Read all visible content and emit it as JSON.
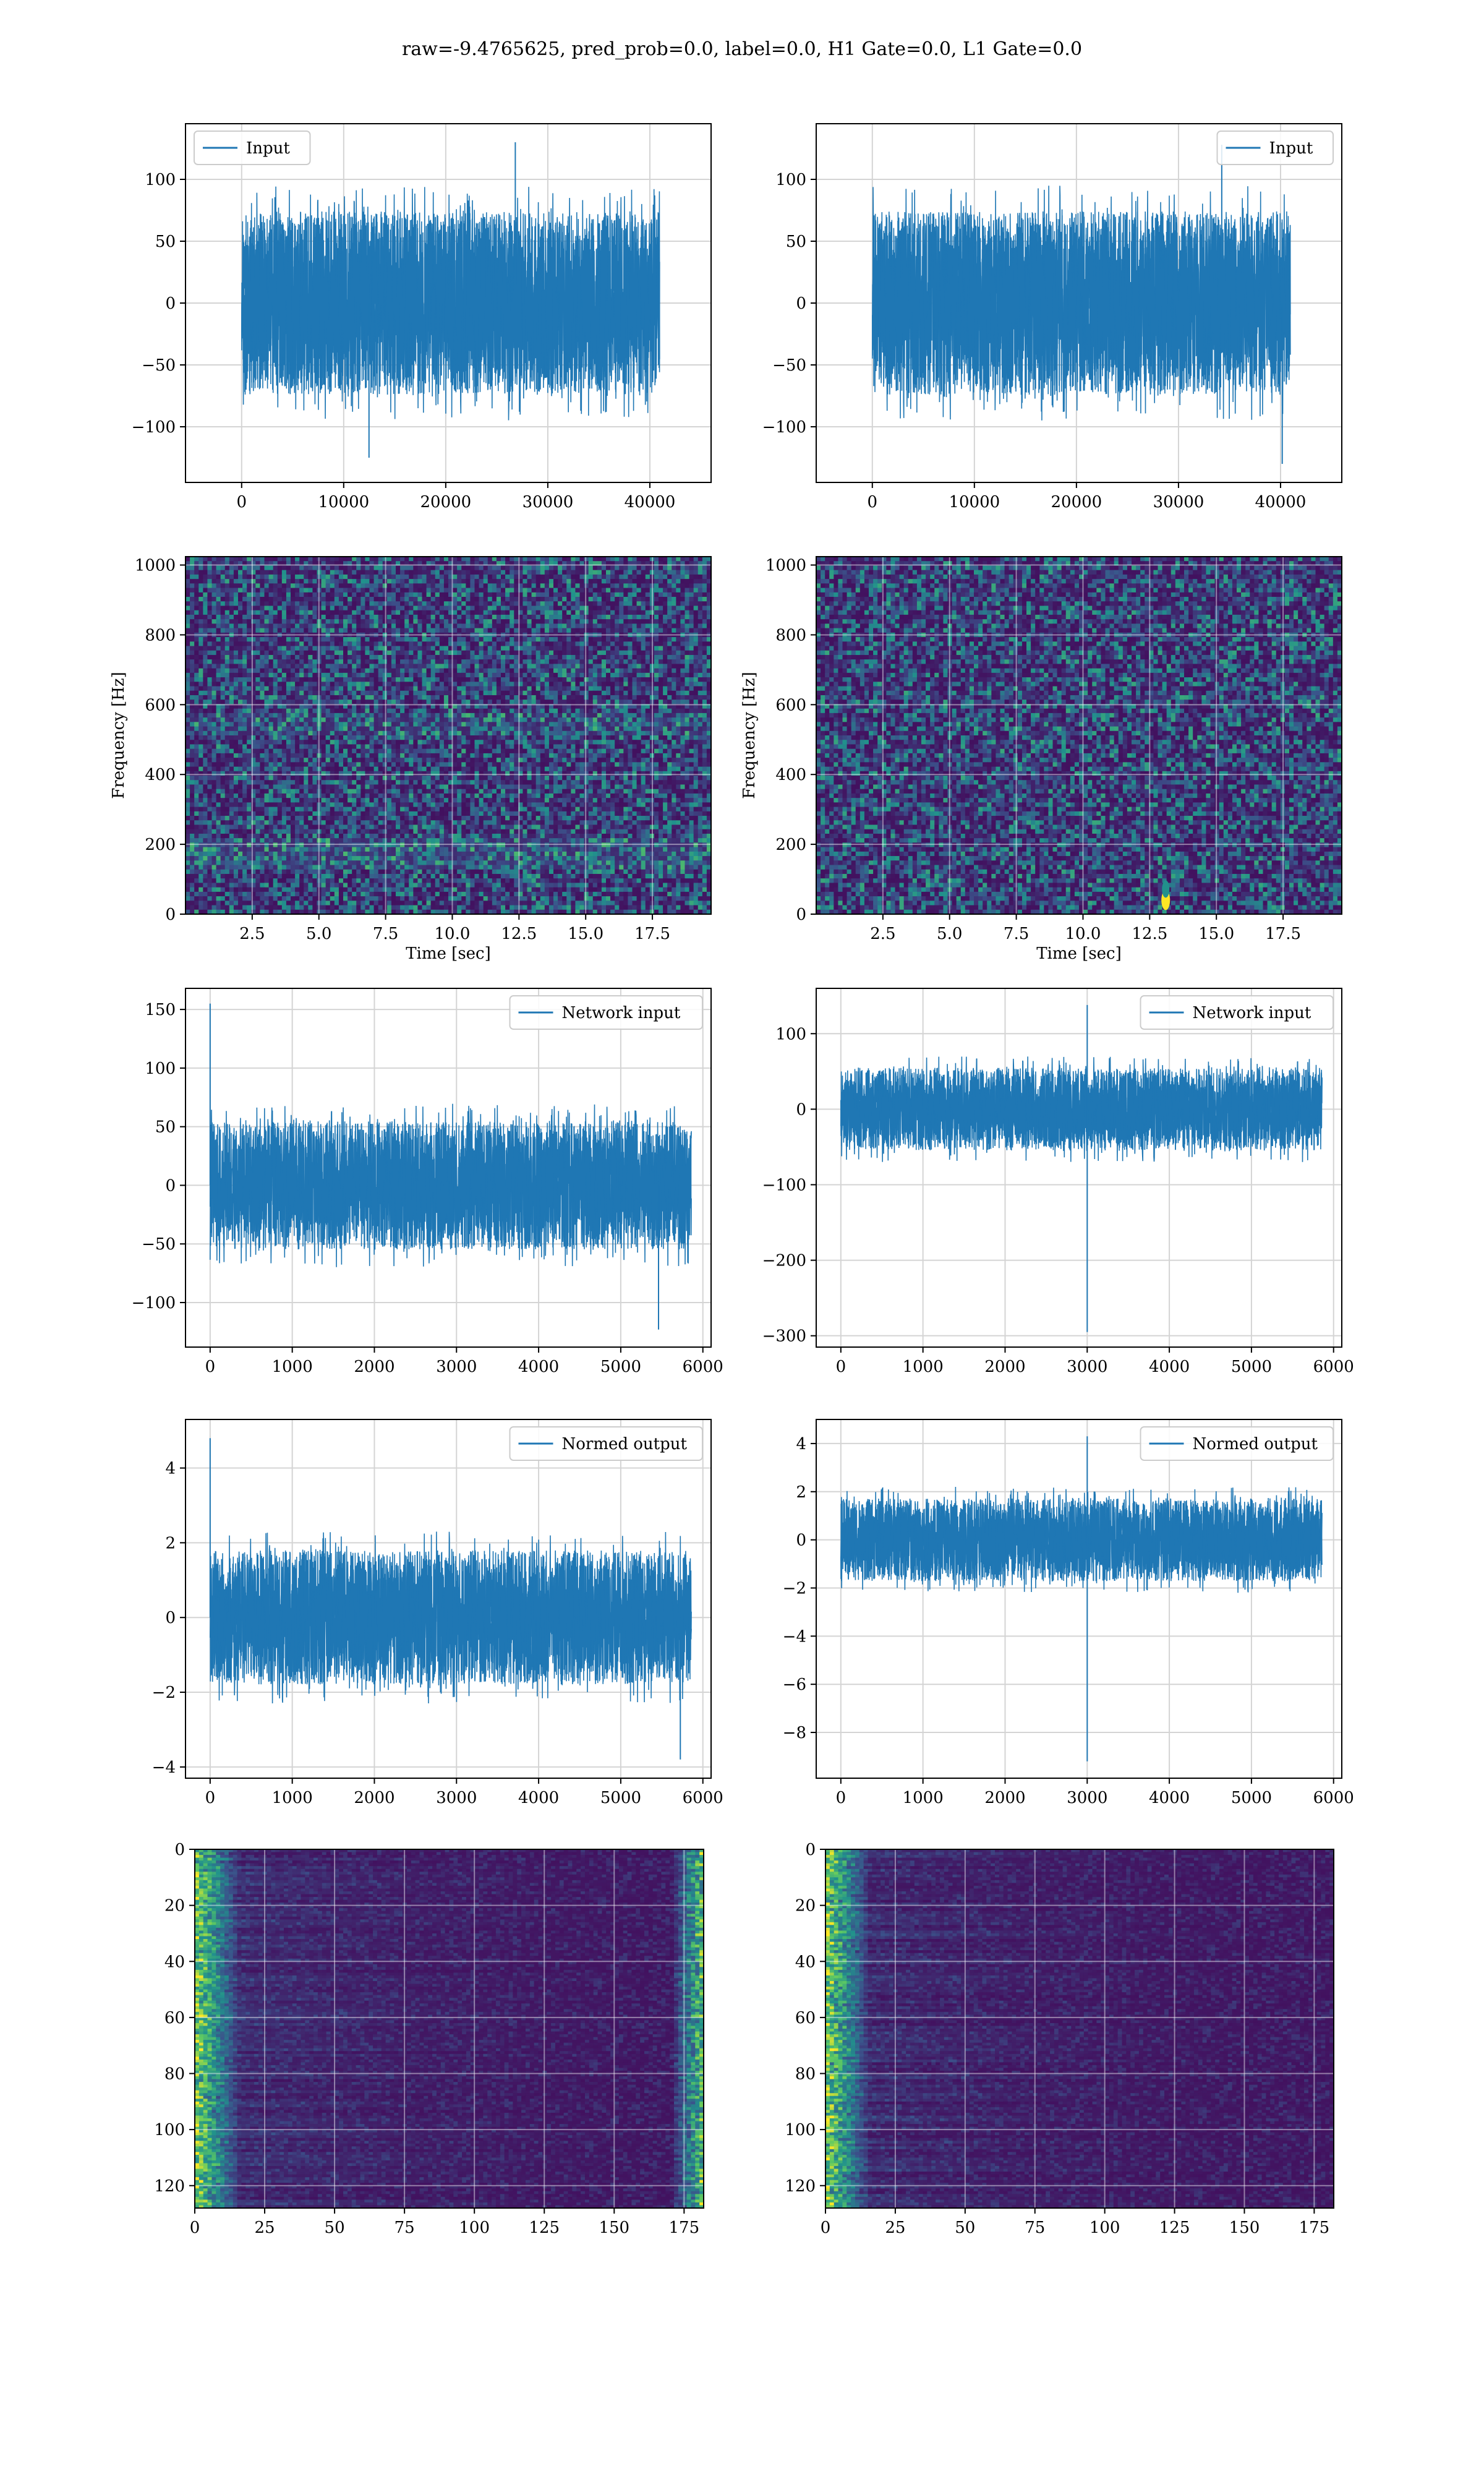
{
  "title": "raw=-9.4765625, pred_prob=0.0, label=0.0, H1 Gate=0.0, L1 Gate=0.0",
  "colors": {
    "line": "#1f77b4",
    "grid": "#d4d4d4",
    "viridis_dark": "#440154",
    "viridis_mid": "#21918c",
    "viridis_light": "#fde725"
  },
  "chart_data": [
    {
      "id": "p1",
      "type": "line",
      "legend": "Input",
      "legend_pos": "top-left",
      "xlim": [
        -5500,
        46000
      ],
      "ylim": [
        -145,
        145
      ],
      "xticks": [
        0,
        10000,
        20000,
        30000,
        40000
      ],
      "yticks": [
        -100,
        -50,
        0,
        50,
        100
      ],
      "series": [
        {
          "name": "Input",
          "x_range": [
            0,
            40960
          ],
          "envelope_low": -95,
          "envelope_high": 95,
          "spike_min": -125,
          "spike_max": 130
        }
      ]
    },
    {
      "id": "p2",
      "type": "line",
      "legend": "Input",
      "legend_pos": "top-right",
      "xlim": [
        -5500,
        46000
      ],
      "ylim": [
        -145,
        145
      ],
      "xticks": [
        0,
        10000,
        20000,
        30000,
        40000
      ],
      "yticks": [
        -100,
        -50,
        0,
        50,
        100
      ],
      "series": [
        {
          "name": "Input",
          "x_range": [
            0,
            40960
          ],
          "envelope_low": -95,
          "envelope_high": 95,
          "spike_min": -130,
          "spike_max": 128
        }
      ]
    },
    {
      "id": "p3",
      "type": "heatmap",
      "xlabel": "Time [sec]",
      "ylabel": "Frequency [Hz]",
      "xlim": [
        0,
        19.7
      ],
      "ylim": [
        0,
        1024
      ],
      "xticks": [
        2.5,
        5.0,
        7.5,
        10.0,
        12.5,
        15.0,
        17.5
      ],
      "yticks": [
        0,
        200,
        400,
        600,
        800,
        1000
      ]
    },
    {
      "id": "p4",
      "type": "heatmap",
      "xlabel": "Time [sec]",
      "ylabel": "Frequency [Hz]",
      "xlim": [
        0,
        19.7
      ],
      "ylim": [
        0,
        1024
      ],
      "xticks": [
        2.5,
        5.0,
        7.5,
        10.0,
        12.5,
        15.0,
        17.5
      ],
      "yticks": [
        0,
        200,
        400,
        600,
        800,
        1000
      ],
      "hotspot": {
        "x": 13.1,
        "y": 40
      }
    },
    {
      "id": "p5",
      "type": "line",
      "legend": "Network input",
      "legend_pos": "top-right",
      "xlim": [
        -300,
        6100
      ],
      "ylim": [
        -138,
        168
      ],
      "xticks": [
        0,
        1000,
        2000,
        3000,
        4000,
        5000,
        6000
      ],
      "yticks": [
        -100,
        -50,
        0,
        50,
        100,
        150
      ],
      "series": [
        {
          "name": "Network input",
          "x_range": [
            0,
            5860
          ],
          "envelope_low": -70,
          "envelope_high": 70,
          "spike_min": -123,
          "spike_max": 155
        }
      ]
    },
    {
      "id": "p6",
      "type": "line",
      "legend": "Network input",
      "legend_pos": "top-right",
      "xlim": [
        -300,
        6100
      ],
      "ylim": [
        -315,
        160
      ],
      "xticks": [
        0,
        1000,
        2000,
        3000,
        4000,
        5000,
        6000
      ],
      "yticks": [
        -300,
        -200,
        -100,
        0,
        100
      ],
      "series": [
        {
          "name": "Network input",
          "x_range": [
            0,
            5860
          ],
          "envelope_low": -70,
          "envelope_high": 70,
          "spike_min": -295,
          "spike_max": 138
        }
      ]
    },
    {
      "id": "p7",
      "type": "line",
      "legend": "Normed output",
      "legend_pos": "top-right",
      "xlim": [
        -300,
        6100
      ],
      "ylim": [
        -4.3,
        5.3
      ],
      "xticks": [
        0,
        1000,
        2000,
        3000,
        4000,
        5000,
        6000
      ],
      "yticks": [
        -4,
        -2,
        0,
        2,
        4
      ],
      "series": [
        {
          "name": "Normed output",
          "x_range": [
            0,
            5860
          ],
          "envelope_low": -2.3,
          "envelope_high": 2.3,
          "spike_min": -3.8,
          "spike_max": 4.8
        }
      ]
    },
    {
      "id": "p8",
      "type": "line",
      "legend": "Normed output",
      "legend_pos": "top-right",
      "xlim": [
        -300,
        6100
      ],
      "ylim": [
        -9.9,
        5.0
      ],
      "xticks": [
        0,
        1000,
        2000,
        3000,
        4000,
        5000,
        6000
      ],
      "yticks": [
        -8,
        -6,
        -4,
        -2,
        0,
        2,
        4
      ],
      "series": [
        {
          "name": "Normed output",
          "x_range": [
            0,
            5860
          ],
          "envelope_low": -2.2,
          "envelope_high": 2.2,
          "spike_min": -9.2,
          "spike_max": 4.3
        }
      ]
    },
    {
      "id": "p9",
      "type": "heatmap",
      "xlim": [
        0,
        182
      ],
      "ylim": [
        0,
        128
      ],
      "xticks": [
        0,
        25,
        50,
        75,
        100,
        125,
        150,
        175
      ],
      "yticks": [
        0,
        20,
        40,
        60,
        80,
        100,
        120
      ]
    },
    {
      "id": "p10",
      "type": "heatmap",
      "xlim": [
        0,
        182
      ],
      "ylim": [
        0,
        128
      ],
      "xticks": [
        0,
        25,
        50,
        75,
        100,
        125,
        150,
        175
      ],
      "yticks": [
        0,
        20,
        40,
        60,
        80,
        100,
        120
      ]
    }
  ]
}
